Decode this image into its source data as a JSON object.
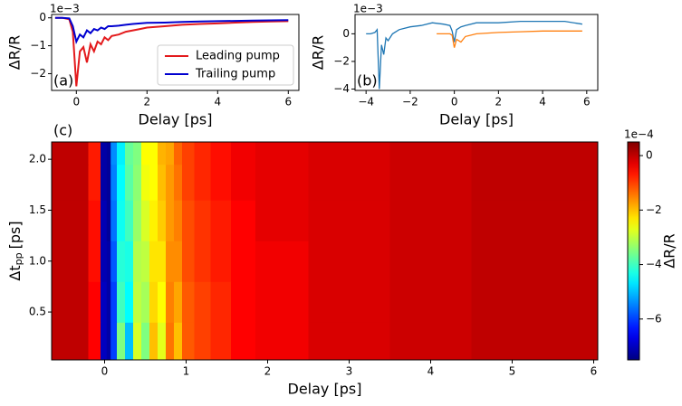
{
  "chart_data": [
    {
      "type": "line",
      "panel_label": "(a)",
      "xlabel": "Delay [ps]",
      "ylabel": "ΔR/R",
      "offset_text": "1e−3",
      "xlim": [
        -0.7,
        6.3
      ],
      "xticks": [
        0,
        2,
        4,
        6
      ],
      "ylim": [
        -2.6,
        0.12
      ],
      "yticks": [
        0,
        {
          "value": -1,
          "label": "−1"
        },
        {
          "value": -2,
          "label": "−2"
        }
      ],
      "legend": "lower right",
      "series": [
        {
          "name": "Leading pump",
          "color": "#e31a1c",
          "x": [
            -0.6,
            -0.4,
            -0.2,
            -0.1,
            0,
            0.1,
            0.2,
            0.3,
            0.4,
            0.5,
            0.6,
            0.7,
            0.8,
            0.9,
            1.0,
            1.2,
            1.4,
            1.6,
            1.8,
            2.0,
            2.5,
            3,
            3.5,
            4,
            4.5,
            5,
            5.5,
            6
          ],
          "values": [
            0,
            0,
            -0.05,
            -0.5,
            -2.45,
            -1.2,
            -1.05,
            -1.6,
            -0.95,
            -1.2,
            -0.85,
            -0.95,
            -0.7,
            -0.8,
            -0.65,
            -0.6,
            -0.5,
            -0.45,
            -0.4,
            -0.35,
            -0.3,
            -0.25,
            -0.22,
            -0.2,
            -0.17,
            -0.15,
            -0.13,
            -0.12
          ]
        },
        {
          "name": "Trailing pump",
          "color": "#0000d0",
          "x": [
            -0.6,
            -0.4,
            -0.2,
            -0.1,
            0,
            0.1,
            0.2,
            0.3,
            0.4,
            0.5,
            0.6,
            0.7,
            0.8,
            0.9,
            1.0,
            1.2,
            1.4,
            1.6,
            1.8,
            2.0,
            2.5,
            3,
            3.5,
            4,
            4.5,
            5,
            5.5,
            6
          ],
          "values": [
            0,
            0,
            -0.02,
            -0.3,
            -0.85,
            -0.6,
            -0.7,
            -0.45,
            -0.55,
            -0.4,
            -0.45,
            -0.35,
            -0.4,
            -0.3,
            -0.3,
            -0.28,
            -0.25,
            -0.22,
            -0.2,
            -0.18,
            -0.17,
            -0.15,
            -0.13,
            -0.12,
            -0.11,
            -0.1,
            -0.09,
            -0.08
          ]
        }
      ]
    },
    {
      "type": "line",
      "panel_label": "(b)",
      "xlabel": "Delay [ps]",
      "ylabel": "ΔR/R",
      "offset_text": "1e−3",
      "xlim": [
        -4.5,
        6.5
      ],
      "xticks": [
        {
          "value": -4,
          "label": "−4"
        },
        {
          "value": -2,
          "label": "−2"
        },
        0,
        2,
        4,
        6
      ],
      "ylim": [
        -4.1,
        1.4
      ],
      "yticks": [
        {
          "value": -4,
          "label": "−4"
        },
        {
          "value": -2,
          "label": "−2"
        },
        0
      ],
      "series": [
        {
          "color": "#1f77b4",
          "x": [
            -4,
            -3.8,
            -3.6,
            -3.5,
            -3.4,
            -3.3,
            -3.2,
            -3.1,
            -3,
            -2.8,
            -2.5,
            -2,
            -1.5,
            -1,
            -0.5,
            -0.2,
            -0.1,
            0,
            0.1,
            0.3,
            0.5,
            1,
            2,
            3,
            4,
            5,
            5.8
          ],
          "values": [
            0,
            0,
            0.1,
            0.3,
            -4.0,
            -0.8,
            -1.5,
            -0.3,
            -0.5,
            0,
            0.3,
            0.5,
            0.6,
            0.8,
            0.7,
            0.6,
            0.2,
            -0.6,
            0.3,
            0.5,
            0.6,
            0.8,
            0.8,
            0.9,
            0.9,
            0.9,
            0.7
          ]
        },
        {
          "color": "#ff7f0e",
          "x": [
            -0.8,
            -0.5,
            -0.2,
            -0.1,
            0,
            0.1,
            0.3,
            0.5,
            1,
            2,
            3,
            4,
            5,
            5.8
          ],
          "values": [
            0,
            0,
            0,
            -0.1,
            -1.0,
            -0.4,
            -0.6,
            -0.2,
            0,
            0.1,
            0.15,
            0.2,
            0.2,
            0.2
          ]
        }
      ]
    },
    {
      "type": "heatmap",
      "panel_label": "(c)",
      "xlabel": "Delay [ps]",
      "ylabel": [
        "Δt",
        "pp",
        "[ps]"
      ],
      "xlim": [
        -0.65,
        6.05
      ],
      "xticks": [
        0,
        1,
        2,
        3,
        4,
        5,
        6
      ],
      "ylim": [
        0.03,
        2.17
      ],
      "yticks": [
        0.5,
        {
          "value": 1,
          "label": "1.0"
        },
        1.5,
        {
          "value": 2,
          "label": "2.0"
        }
      ],
      "cmap": "jet",
      "clim": [
        -7.5,
        0.5
      ],
      "colorbar": {
        "label": "ΔR/R",
        "offset_text": "1e−4",
        "ticks": [
          0,
          {
            "value": -2,
            "label": "−2"
          },
          {
            "value": -4,
            "label": "−4"
          },
          {
            "value": -6,
            "label": "−6"
          }
        ]
      },
      "x": [
        -0.6,
        -0.3,
        -0.1,
        0,
        0.05,
        0.1,
        0.2,
        0.3,
        0.4,
        0.5,
        0.6,
        0.7,
        0.8,
        0.9,
        1.0,
        1.2,
        1.4,
        1.7,
        2,
        3,
        4,
        5,
        6
      ],
      "y": [
        0.2,
        0.6,
        1.0,
        1.4,
        1.8,
        2.1
      ],
      "z": [
        [
          0,
          0,
          -0.5,
          -7,
          -7.2,
          -6,
          -3.5,
          -5,
          -2.8,
          -3.5,
          -2,
          -2.7,
          -1.4,
          -2,
          -1.2,
          -1,
          -0.8,
          -0.5,
          -0.4,
          -0.2,
          -0.1,
          0,
          0
        ],
        [
          0,
          0,
          -0.5,
          -7,
          -7.2,
          -6,
          -4,
          -4.5,
          -3,
          -3.2,
          -2.2,
          -2.5,
          -1.5,
          -1.8,
          -1.2,
          -1,
          -0.8,
          -0.5,
          -0.4,
          -0.2,
          -0.1,
          0,
          0
        ],
        [
          0,
          0,
          -0.6,
          -7.1,
          -7.2,
          -5.8,
          -4.2,
          -4.3,
          -3.1,
          -3,
          -2.3,
          -2.3,
          -1.6,
          -1.6,
          -1.1,
          -0.9,
          -0.7,
          -0.5,
          -0.4,
          -0.2,
          -0.1,
          0,
          0
        ],
        [
          0,
          0,
          -0.6,
          -7.1,
          -7.3,
          -5.6,
          -4.4,
          -4,
          -3.3,
          -2.8,
          -2.4,
          -2.1,
          -1.7,
          -1.5,
          -1.1,
          -0.9,
          -0.7,
          -0.5,
          -0.3,
          -0.2,
          -0.1,
          0,
          0
        ],
        [
          0,
          0,
          -0.7,
          -7.2,
          -7.3,
          -5.5,
          -4.5,
          -3.8,
          -3.4,
          -2.6,
          -2.5,
          -2,
          -1.7,
          -1.4,
          -1,
          -0.8,
          -0.6,
          -0.4,
          -0.3,
          -0.2,
          -0.1,
          0,
          0
        ],
        [
          0,
          0,
          -0.7,
          -7.2,
          -7.3,
          -5.4,
          -4.6,
          -3.7,
          -3.5,
          -2.5,
          -2.5,
          -1.9,
          -1.8,
          -1.3,
          -1,
          -0.8,
          -0.6,
          -0.4,
          -0.3,
          -0.2,
          -0.1,
          0,
          0
        ]
      ]
    }
  ]
}
